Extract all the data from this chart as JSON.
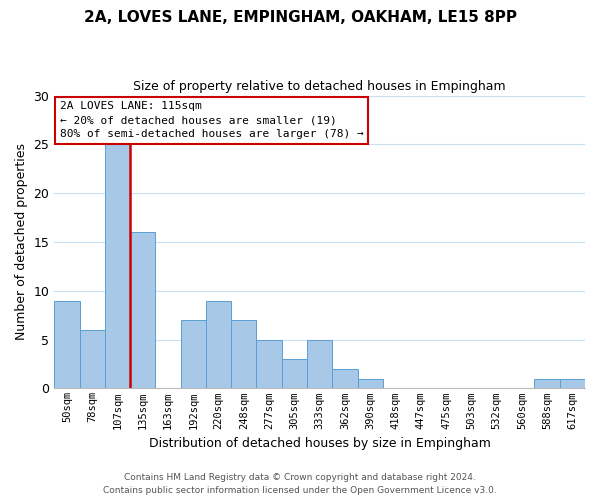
{
  "title1": "2A, LOVES LANE, EMPINGHAM, OAKHAM, LE15 8PP",
  "title2": "Size of property relative to detached houses in Empingham",
  "xlabel": "Distribution of detached houses by size in Empingham",
  "ylabel": "Number of detached properties",
  "bin_labels": [
    "50sqm",
    "78sqm",
    "107sqm",
    "135sqm",
    "163sqm",
    "192sqm",
    "220sqm",
    "248sqm",
    "277sqm",
    "305sqm",
    "333sqm",
    "362sqm",
    "390sqm",
    "418sqm",
    "447sqm",
    "475sqm",
    "503sqm",
    "532sqm",
    "560sqm",
    "588sqm",
    "617sqm"
  ],
  "bin_values": [
    9,
    6,
    25,
    16,
    0,
    7,
    9,
    7,
    5,
    3,
    5,
    2,
    1,
    0,
    0,
    0,
    0,
    0,
    0,
    1,
    1
  ],
  "bar_color": "#a8c8e8",
  "bar_edge_color": "#5a9fd4",
  "vline_x": 2.5,
  "vline_color": "#cc0000",
  "annotation_line1": "2A LOVES LANE: 115sqm",
  "annotation_line2": "← 20% of detached houses are smaller (19)",
  "annotation_line3": "80% of semi-detached houses are larger (78) →",
  "annotation_box_edge_color": "#cc0000",
  "ylim": [
    0,
    30
  ],
  "yticks": [
    0,
    5,
    10,
    15,
    20,
    25,
    30
  ],
  "footnote1": "Contains HM Land Registry data © Crown copyright and database right 2024.",
  "footnote2": "Contains public sector information licensed under the Open Government Licence v3.0."
}
